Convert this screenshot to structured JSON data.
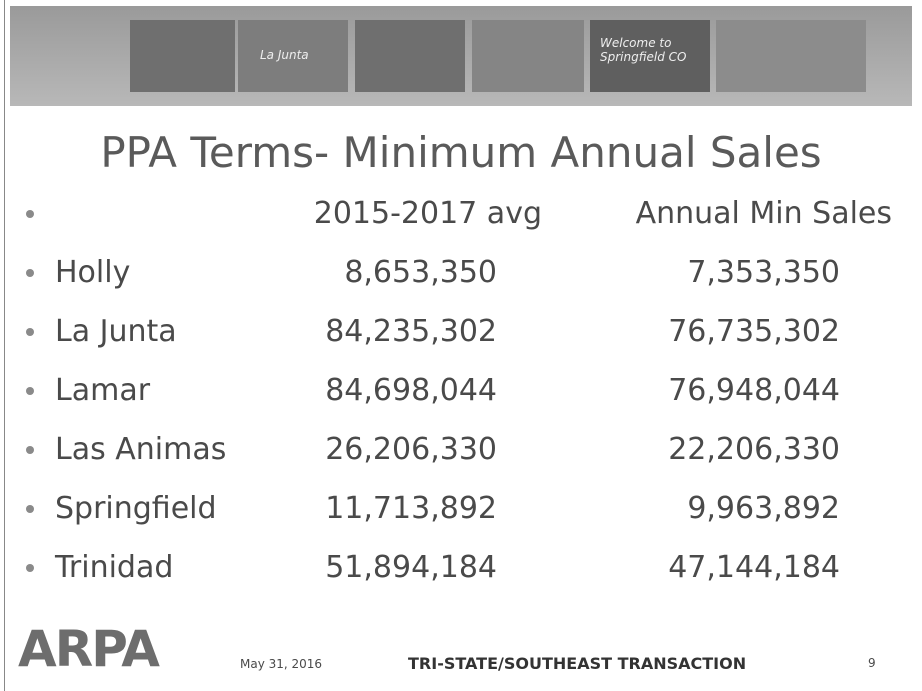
{
  "banner": {
    "captions": [
      "La Junta",
      "Welcome to Springfield CO"
    ]
  },
  "title": "PPA Terms- Minimum Annual Sales",
  "table": {
    "columns": [
      "2015-2017 avg",
      "Annual Min Sales"
    ],
    "rows": [
      [
        "Holly",
        "8,653,350",
        "7,353,350"
      ],
      [
        "La Junta",
        "84,235,302",
        "76,735,302"
      ],
      [
        "Lamar",
        "84,698,044",
        "76,948,044"
      ],
      [
        "Las Animas",
        "26,206,330",
        "22,206,330"
      ],
      [
        "Springfield",
        "11,713,892",
        "9,963,892"
      ],
      [
        "Trinidad",
        "51,894,184",
        "47,144,184"
      ]
    ]
  },
  "footer": {
    "logo": "ARPA",
    "date": "May 31, 2016",
    "text": "TRI-STATE/SOUTHEAST TRANSACTION",
    "page": "9"
  }
}
